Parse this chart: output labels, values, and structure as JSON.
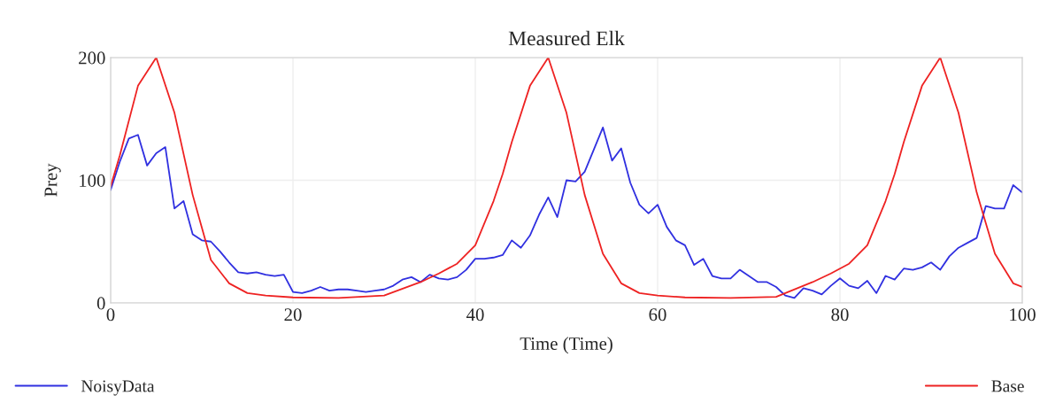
{
  "chart_data": {
    "type": "line",
    "title": "Measured Elk",
    "xlabel": "Time (Time)",
    "ylabel": "Prey",
    "xlim": [
      0,
      100
    ],
    "xticks": [
      0,
      20,
      40,
      60,
      80,
      100
    ],
    "ylim": [
      0,
      200
    ],
    "yticks": [
      0,
      100,
      200
    ],
    "grid": true,
    "legend": "bottom",
    "series": [
      {
        "name": "NoisyData",
        "color": "#3030e0",
        "x": [
          0,
          1,
          2,
          3,
          4,
          5,
          6,
          7,
          8,
          9,
          10,
          11,
          12,
          13,
          14,
          15,
          16,
          17,
          18,
          19,
          20,
          21,
          22,
          23,
          24,
          25,
          26,
          27,
          28,
          29,
          30,
          31,
          32,
          33,
          34,
          35,
          36,
          37,
          38,
          39,
          40,
          41,
          42,
          43,
          44,
          45,
          46,
          47,
          48,
          49,
          50,
          51,
          52,
          53,
          54,
          55,
          56,
          57,
          58,
          59,
          60,
          61,
          62,
          63,
          64,
          65,
          66,
          67,
          68,
          69,
          70,
          71,
          72,
          73,
          74,
          75,
          76,
          77,
          78,
          79,
          80,
          81,
          82,
          83,
          84,
          85,
          86,
          87,
          88,
          89,
          90,
          91,
          92,
          93,
          94,
          95,
          96,
          97,
          98,
          99,
          100
        ],
        "values": [
          92,
          115,
          134,
          137,
          112,
          122,
          127,
          77,
          83,
          56,
          51,
          50,
          42,
          33,
          25,
          24,
          25,
          23,
          22,
          23,
          9,
          8,
          10,
          13,
          10,
          11,
          11,
          10,
          9,
          10,
          11,
          14,
          19,
          21,
          17,
          23,
          20,
          19,
          21,
          27,
          36,
          36,
          37,
          39,
          51,
          45,
          55,
          72,
          86,
          70,
          100,
          99,
          107,
          125,
          143,
          116,
          126,
          98,
          80,
          73,
          80,
          62,
          51,
          47,
          31,
          36,
          22,
          20,
          20,
          27,
          22,
          17,
          17,
          13,
          6,
          4,
          12,
          10,
          7,
          14,
          20,
          14,
          12,
          18,
          8,
          22,
          19,
          28,
          27,
          29,
          33,
          27,
          38,
          45,
          49,
          53,
          79,
          77,
          77,
          96,
          90
        ]
      },
      {
        "name": "Base",
        "color": "#ee2222",
        "x": [
          0,
          1,
          3,
          5,
          7,
          9,
          11,
          13,
          15,
          17,
          20,
          25,
          30,
          34,
          36,
          38,
          40,
          42,
          43,
          44,
          46,
          48,
          50,
          52,
          54,
          56,
          58,
          60,
          63,
          68,
          73,
          77,
          79,
          81,
          83,
          85,
          86,
          87,
          89,
          91,
          93,
          95,
          97,
          99,
          100
        ],
        "values": [
          95,
          120,
          177,
          200,
          155,
          88,
          35,
          16,
          8,
          6,
          4.5,
          4,
          6,
          17,
          24,
          32,
          47,
          83,
          105,
          131,
          177,
          200,
          155,
          88,
          40,
          16,
          8,
          6,
          4.5,
          4,
          5,
          17,
          24,
          32,
          47,
          83,
          105,
          131,
          177,
          200,
          155,
          90,
          40,
          16,
          13
        ]
      }
    ]
  }
}
